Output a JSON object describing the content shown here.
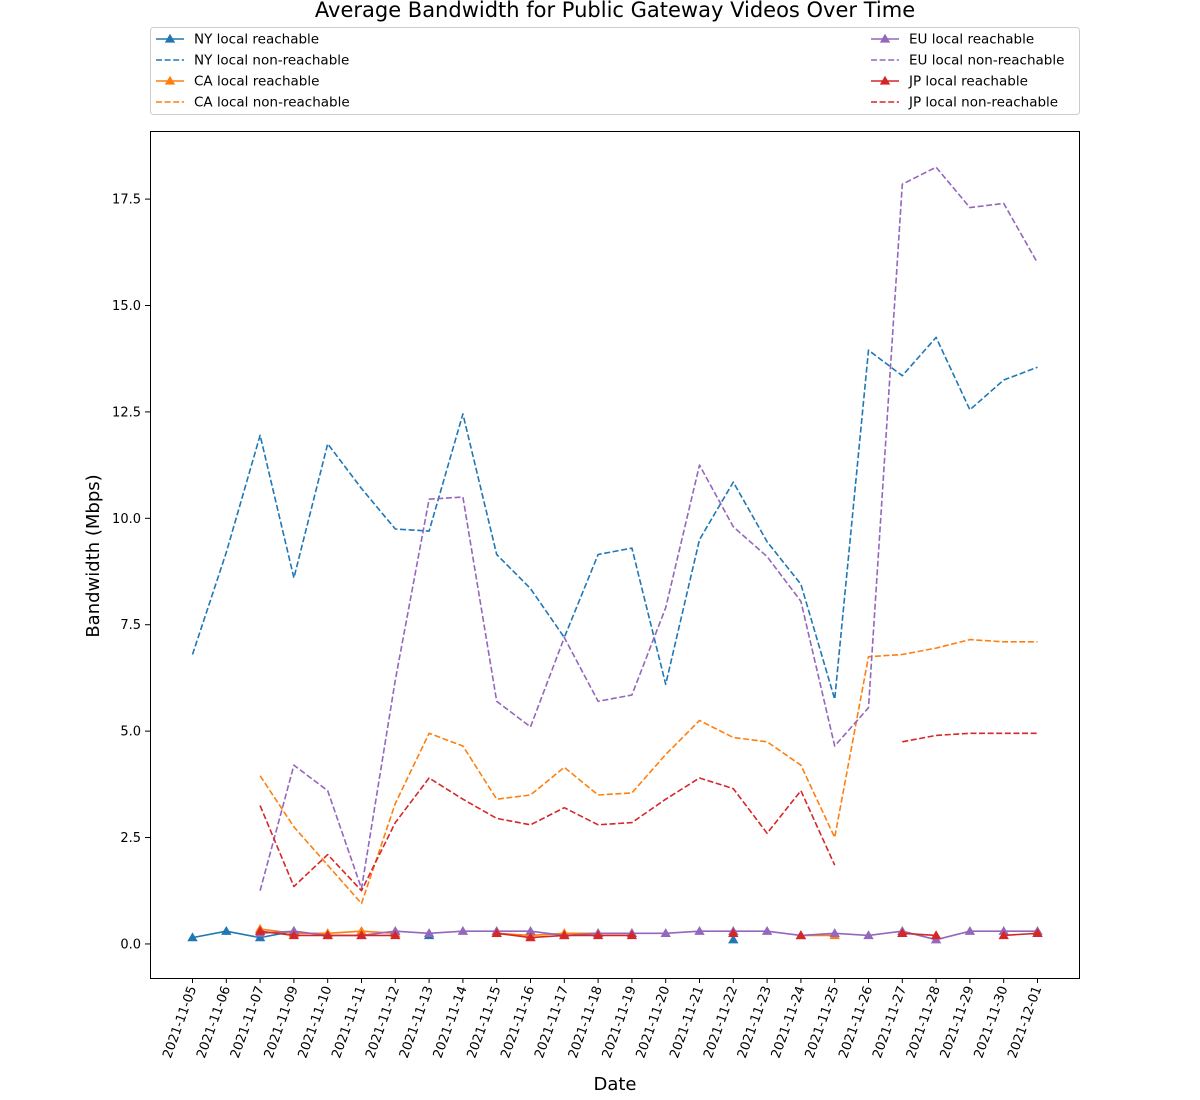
{
  "chart_data": {
    "type": "line",
    "title": "Average Bandwidth for Public Gateway Videos Over Time",
    "xlabel": "Date",
    "ylabel": "Bandwidth (Mbps)",
    "ylim": [
      -0.8,
      19.1
    ],
    "yticks": [
      "0.0",
      "2.5",
      "5.0",
      "7.5",
      "10.0",
      "12.5",
      "15.0",
      "17.5"
    ],
    "grid": false,
    "legend_position": "top, two columns",
    "categories": [
      "2021-11-05",
      "2021-11-06",
      "2021-11-07",
      "2021-11-09",
      "2021-11-10",
      "2021-11-11",
      "2021-11-12",
      "2021-11-13",
      "2021-11-14",
      "2021-11-15",
      "2021-11-16",
      "2021-11-17",
      "2021-11-18",
      "2021-11-19",
      "2021-11-20",
      "2021-11-21",
      "2021-11-22",
      "2021-11-23",
      "2021-11-24",
      "2021-11-25",
      "2021-11-26",
      "2021-11-27",
      "2021-11-28",
      "2021-11-29",
      "2021-11-30",
      "2021-12-01"
    ],
    "series": [
      {
        "name": "NY local reachable",
        "color": "#1f77b4",
        "style": "solid",
        "marker": "triangle",
        "values": [
          0.15,
          0.3,
          0.15,
          0.3,
          null,
          null,
          null,
          0.2,
          null,
          null,
          null,
          null,
          null,
          null,
          null,
          null,
          0.1,
          null,
          null,
          null,
          null,
          null,
          null,
          null,
          null,
          null
        ]
      },
      {
        "name": "NY local non-reachable",
        "color": "#1f77b4",
        "style": "dashed",
        "marker": "none",
        "values": [
          6.8,
          9.2,
          11.95,
          8.6,
          11.75,
          10.7,
          9.75,
          9.7,
          12.45,
          9.15,
          8.35,
          7.2,
          9.15,
          9.3,
          6.1,
          9.5,
          10.85,
          9.45,
          8.45,
          5.75,
          13.95,
          13.35,
          14.25,
          12.55,
          13.25,
          13.55
        ]
      },
      {
        "name": "CA local reachable",
        "color": "#ff7f0e",
        "style": "solid",
        "marker": "triangle",
        "values": [
          null,
          null,
          0.35,
          0.25,
          0.25,
          0.3,
          0.25,
          null,
          null,
          0.25,
          0.2,
          0.25,
          0.25,
          0.25,
          null,
          null,
          null,
          null,
          0.2,
          0.2,
          null,
          null,
          null,
          null,
          null,
          0.25
        ]
      },
      {
        "name": "CA local non-reachable",
        "color": "#ff7f0e",
        "style": "dashed",
        "marker": "none",
        "values": [
          null,
          null,
          3.95,
          2.75,
          1.85,
          0.95,
          3.3,
          4.95,
          4.65,
          3.4,
          3.5,
          4.15,
          3.5,
          3.55,
          4.45,
          5.25,
          4.85,
          4.75,
          4.2,
          2.5,
          6.75,
          6.8,
          6.95,
          7.15,
          7.1,
          7.1
        ]
      },
      {
        "name": "EU local reachable",
        "color": "#9467bd",
        "style": "solid",
        "marker": "triangle",
        "values": [
          null,
          null,
          0.25,
          0.3,
          0.2,
          0.2,
          0.3,
          0.25,
          0.3,
          0.3,
          0.3,
          0.2,
          0.25,
          0.25,
          0.25,
          0.3,
          0.3,
          0.3,
          0.2,
          0.25,
          0.2,
          0.3,
          0.1,
          0.3,
          0.3,
          0.3
        ]
      },
      {
        "name": "EU local non-reachable",
        "color": "#9467bd",
        "style": "dashed",
        "marker": "none",
        "values": [
          null,
          null,
          1.25,
          4.2,
          3.6,
          1.3,
          6.2,
          10.45,
          10.5,
          5.7,
          5.1,
          7.2,
          5.7,
          5.85,
          7.9,
          11.25,
          9.8,
          9.1,
          8.05,
          4.65,
          5.55,
          17.85,
          18.25,
          17.3,
          17.4,
          16.0
        ]
      },
      {
        "name": "JP local reachable",
        "color": "#d62728",
        "style": "solid",
        "marker": "triangle",
        "values": [
          null,
          null,
          0.3,
          0.2,
          0.2,
          0.2,
          0.2,
          null,
          null,
          0.25,
          0.15,
          0.2,
          0.2,
          0.2,
          null,
          null,
          0.25,
          null,
          0.2,
          null,
          null,
          0.25,
          0.2,
          null,
          0.2,
          0.25
        ]
      },
      {
        "name": "JP local non-reachable",
        "color": "#d62728",
        "style": "dashed",
        "marker": "none",
        "values": [
          null,
          null,
          3.25,
          1.35,
          2.1,
          1.25,
          2.85,
          3.9,
          3.4,
          2.95,
          2.8,
          3.2,
          2.8,
          2.85,
          3.4,
          3.9,
          3.65,
          2.6,
          3.6,
          1.85,
          null,
          4.75,
          4.9,
          4.95,
          4.95,
          4.95
        ]
      }
    ]
  }
}
